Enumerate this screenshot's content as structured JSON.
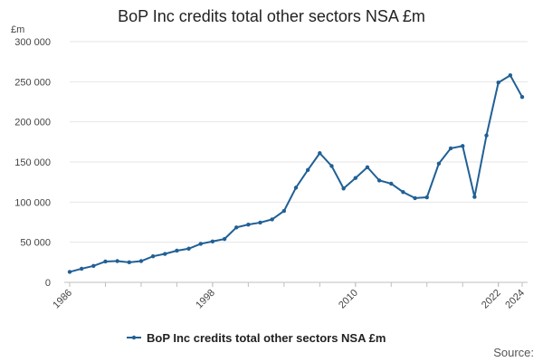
{
  "chart_data": {
    "type": "line",
    "title": "BoP Inc credits total other sectors NSA £m",
    "unit_label": "£m",
    "source_label": "Source:",
    "legend_placement": "bottom",
    "grid": true,
    "ylim": [
      0,
      300000
    ],
    "yticks": [
      {
        "value": 0,
        "label": "0"
      },
      {
        "value": 50000,
        "label": "50 000"
      },
      {
        "value": 100000,
        "label": "100 000"
      },
      {
        "value": 150000,
        "label": "150 000"
      },
      {
        "value": 200000,
        "label": "200 000"
      },
      {
        "value": 250000,
        "label": "250 000"
      },
      {
        "value": 300000,
        "label": "300 000"
      }
    ],
    "xlim": [
      1986,
      2024
    ],
    "xticks": [
      {
        "value": 1986,
        "label": "1986"
      },
      {
        "value": 1998,
        "label": "1998"
      },
      {
        "value": 2010,
        "label": "2010"
      },
      {
        "value": 2022,
        "label": "2022"
      },
      {
        "value": 2024,
        "label": "2024"
      }
    ],
    "series": [
      {
        "name": "BoP Inc credits total other sectors NSA £m",
        "color": "#206095",
        "x": [
          1986,
          1987,
          1988,
          1989,
          1990,
          1991,
          1992,
          1993,
          1994,
          1995,
          1996,
          1997,
          1998,
          1999,
          2000,
          2001,
          2002,
          2003,
          2004,
          2005,
          2006,
          2007,
          2008,
          2009,
          2010,
          2011,
          2012,
          2013,
          2014,
          2015,
          2016,
          2017,
          2018,
          2019,
          2020,
          2021,
          2022,
          2023,
          2024
        ],
        "y": [
          13000,
          17000,
          20500,
          26000,
          26500,
          25000,
          26500,
          32500,
          35500,
          39500,
          42000,
          48000,
          51000,
          54000,
          68500,
          72000,
          74500,
          78500,
          89000,
          118000,
          140000,
          161000,
          145000,
          117000,
          130000,
          143500,
          127000,
          123000,
          112500,
          105000,
          106000,
          148000,
          167000,
          170000,
          106500,
          183000,
          249000,
          258000,
          231000
        ]
      }
    ]
  }
}
